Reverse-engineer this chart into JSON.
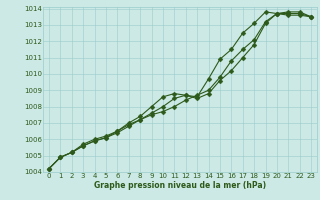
{
  "xlabel": "Graphe pression niveau de la mer (hPa)",
  "ylim": [
    1004,
    1014
  ],
  "xlim": [
    -0.5,
    23.5
  ],
  "yticks": [
    1004,
    1005,
    1006,
    1007,
    1008,
    1009,
    1010,
    1011,
    1012,
    1013,
    1014
  ],
  "xticks": [
    0,
    1,
    2,
    3,
    4,
    5,
    6,
    7,
    8,
    9,
    10,
    11,
    12,
    13,
    14,
    15,
    16,
    17,
    18,
    19,
    20,
    21,
    22,
    23
  ],
  "background_color": "#cce9e5",
  "grid_color": "#99cccc",
  "line_color": "#2d5a1b",
  "line1": [
    1004.2,
    1004.9,
    1005.2,
    1005.6,
    1005.9,
    1006.1,
    1006.5,
    1006.9,
    1007.2,
    1007.5,
    1007.7,
    1008.0,
    1008.4,
    1008.7,
    1009.0,
    1009.8,
    1010.8,
    1011.5,
    1012.1,
    1013.2,
    1013.7,
    1013.8,
    1013.8,
    1013.5
  ],
  "line2": [
    1004.2,
    1004.9,
    1005.2,
    1005.6,
    1005.9,
    1006.1,
    1006.4,
    1006.8,
    1007.2,
    1007.6,
    1008.0,
    1008.5,
    1008.7,
    1008.5,
    1008.8,
    1009.6,
    1010.2,
    1011.0,
    1011.8,
    1013.1,
    1013.7,
    1013.7,
    1013.7,
    1013.5
  ],
  "line3": [
    1004.2,
    1004.9,
    1005.2,
    1005.7,
    1006.0,
    1006.2,
    1006.5,
    1007.0,
    1007.4,
    1008.0,
    1008.6,
    1008.8,
    1008.7,
    1008.6,
    1009.7,
    1010.9,
    1011.5,
    1012.5,
    1013.1,
    1013.8,
    1013.7,
    1013.6,
    1013.6,
    1013.5
  ],
  "markersize": 2.5,
  "linewidth": 0.8,
  "tick_fontsize": 5.0,
  "xlabel_fontsize": 5.5
}
